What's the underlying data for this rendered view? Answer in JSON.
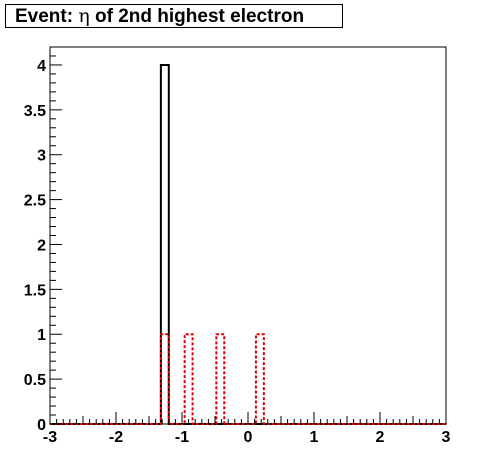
{
  "title_parts": {
    "prefix": "Event:",
    "symbol": "η",
    "suffix": "of 2nd highest electron"
  },
  "chart_data": {
    "type": "histogram",
    "title": "Event: η of 2nd highest electron",
    "xlim": [
      -3,
      3
    ],
    "ylim": [
      0,
      4.2
    ],
    "xticks": [
      -3,
      -2,
      -1,
      0,
      1,
      2,
      3
    ],
    "yticks": [
      0,
      0.5,
      1,
      1.5,
      2,
      2.5,
      3,
      3.5,
      4
    ],
    "grid": false,
    "series": [
      {
        "color": "#000000",
        "linestyle": "solid",
        "bins": [
          {
            "x0": -1.32,
            "x1": -1.2,
            "value": 4
          }
        ]
      },
      {
        "color": "#e00000",
        "linestyle": "dotted",
        "bins": [
          {
            "x0": -1.32,
            "x1": -1.2,
            "value": 1
          },
          {
            "x0": -0.96,
            "x1": -0.84,
            "value": 1
          },
          {
            "x0": -0.48,
            "x1": -0.36,
            "value": 1
          },
          {
            "x0": 0.12,
            "x1": 0.24,
            "value": 1
          }
        ]
      }
    ]
  }
}
